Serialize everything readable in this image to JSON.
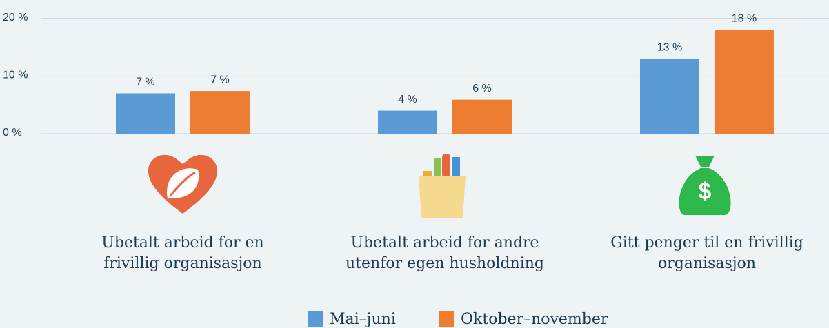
{
  "chart_data": {
    "type": "bar",
    "categories": [
      "Ubetalt arbeid for en frivillig organisasjon",
      "Ubetalt arbeid for andre utenfor egen husholdning",
      "Gitt penger til en frivillig organisasjon"
    ],
    "series": [
      {
        "name": "Mai–juni",
        "color": "#5b9bd5",
        "values": [
          7,
          4,
          13
        ],
        "value_labels": [
          "7 %",
          "4 %",
          "13 %"
        ]
      },
      {
        "name": "Oktober–november",
        "color": "#ed7d31",
        "values": [
          7.4,
          5.9,
          18
        ],
        "value_labels": [
          "7 %",
          "6 %",
          "18 %"
        ]
      }
    ],
    "ylim": [
      0,
      22
    ],
    "yticks": [
      {
        "value": 0,
        "label": "0 %"
      },
      {
        "value": 10,
        "label": "10 %"
      },
      {
        "value": 20,
        "label": "20 %"
      }
    ],
    "grid": true,
    "legend": "bottom"
  }
}
